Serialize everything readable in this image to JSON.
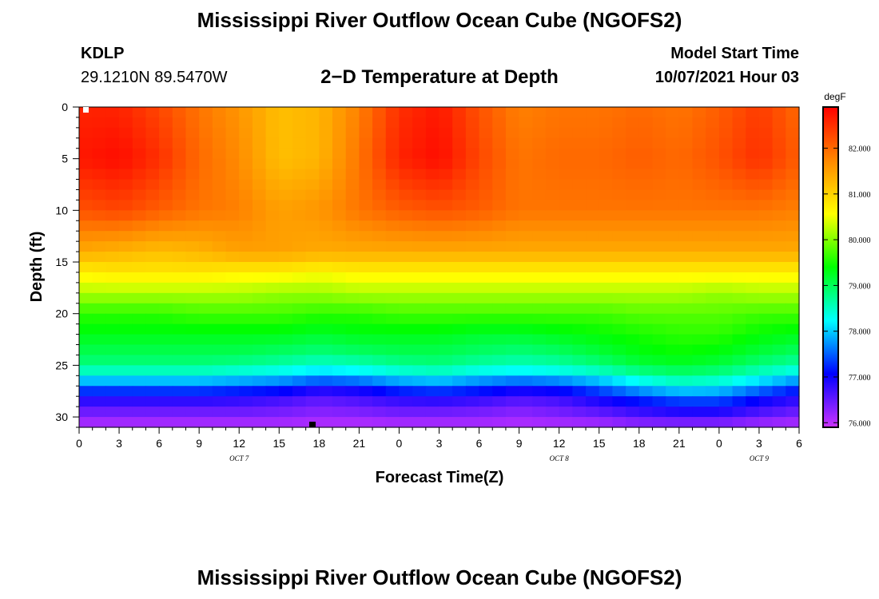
{
  "header": {
    "title": "Mississippi River Outflow Ocean Cube (NGOFS2)",
    "station_id": "KDLP",
    "station_coords": "29.1210N  89.5470W",
    "plot_title": "2−D Temperature at Depth",
    "model_start_label": "Model Start Time",
    "model_start_value": "10/07/2021 Hour 03"
  },
  "footer": {
    "title": "Mississippi River Outflow Ocean Cube (NGOFS2)"
  },
  "chart_data": {
    "type": "heatmap",
    "title": "2−D Temperature at Depth",
    "xlabel": "Forecast Time(Z)",
    "ylabel": "Depth (ft)",
    "x_start_hour": 0,
    "x_end_hour": 54,
    "x_ticks": [
      {
        "hour": 0,
        "label": "0"
      },
      {
        "hour": 3,
        "label": "3"
      },
      {
        "hour": 6,
        "label": "6"
      },
      {
        "hour": 9,
        "label": "9"
      },
      {
        "hour": 12,
        "label": "12"
      },
      {
        "hour": 15,
        "label": "15"
      },
      {
        "hour": 18,
        "label": "18"
      },
      {
        "hour": 21,
        "label": "21"
      },
      {
        "hour": 24,
        "label": "0"
      },
      {
        "hour": 27,
        "label": "3"
      },
      {
        "hour": 30,
        "label": "6"
      },
      {
        "hour": 33,
        "label": "9"
      },
      {
        "hour": 36,
        "label": "12"
      },
      {
        "hour": 39,
        "label": "15"
      },
      {
        "hour": 42,
        "label": "18"
      },
      {
        "hour": 45,
        "label": "21"
      },
      {
        "hour": 48,
        "label": "0"
      },
      {
        "hour": 51,
        "label": "3"
      },
      {
        "hour": 54,
        "label": "6"
      }
    ],
    "date_labels": [
      {
        "hour": 12,
        "label": "OCT 7"
      },
      {
        "hour": 36,
        "label": "OCT 8"
      },
      {
        "hour": 51,
        "label": "OCT 9"
      }
    ],
    "ylim": [
      0,
      31
    ],
    "y_reversed": true,
    "y_ticks": [
      0,
      5,
      10,
      15,
      20,
      25,
      30
    ],
    "colorbar": {
      "unit": "degF",
      "range": [
        75.9,
        82.9
      ],
      "tick_values": [
        76,
        77,
        78,
        79,
        80,
        81,
        82
      ],
      "tick_labels": [
        "76.000",
        "77.000",
        "78.000",
        "79.000",
        "80.000",
        "81.000",
        "82.000"
      ],
      "colormap": [
        "#cc33ff",
        "#0000ff",
        "#00ffff",
        "#00ff00",
        "#ffff00",
        "#ff8800",
        "#ff0000"
      ]
    },
    "depth_levels": [
      0,
      5,
      10,
      14,
      16,
      18,
      20,
      22,
      24,
      25,
      26,
      27,
      28,
      29,
      30,
      31
    ],
    "time_hours": [
      0,
      3,
      6,
      9,
      12,
      15,
      18,
      21,
      24,
      27,
      30,
      33,
      36,
      39,
      42,
      45,
      48,
      51,
      54
    ],
    "temperature_degF": [
      [
        82.6,
        82.6,
        82.3,
        81.9,
        81.6,
        81.2,
        81.3,
        81.8,
        82.5,
        82.7,
        82.2,
        81.8,
        81.9,
        81.9,
        82.0,
        81.9,
        82.1,
        82.4,
        82.0
      ],
      [
        82.7,
        82.8,
        82.5,
        82.0,
        81.7,
        81.2,
        81.3,
        81.9,
        82.6,
        82.8,
        82.3,
        81.9,
        82.0,
        82.0,
        82.1,
        82.0,
        82.2,
        82.5,
        82.1
      ],
      [
        82.2,
        82.3,
        82.1,
        81.9,
        81.8,
        81.5,
        81.6,
        81.9,
        82.1,
        82.2,
        82.1,
        81.9,
        81.9,
        81.9,
        81.9,
        81.9,
        81.9,
        81.9,
        81.8
      ],
      [
        81.4,
        81.3,
        81.2,
        81.3,
        81.5,
        81.5,
        81.4,
        81.4,
        81.4,
        81.4,
        81.4,
        81.4,
        81.4,
        81.4,
        81.4,
        81.4,
        81.4,
        81.4,
        81.4
      ],
      [
        80.7,
        80.8,
        80.8,
        80.8,
        80.7,
        80.7,
        80.6,
        80.7,
        80.7,
        80.7,
        80.7,
        80.7,
        80.7,
        80.7,
        80.7,
        80.7,
        80.7,
        80.7,
        80.7
      ],
      [
        80.2,
        80.2,
        80.2,
        80.2,
        80.2,
        80.1,
        80.1,
        80.2,
        80.2,
        80.2,
        80.2,
        80.2,
        80.2,
        80.2,
        80.2,
        80.2,
        80.1,
        80.2,
        80.2
      ],
      [
        79.6,
        79.6,
        79.6,
        79.7,
        79.7,
        79.7,
        79.6,
        79.6,
        79.7,
        79.7,
        79.7,
        79.7,
        79.7,
        79.7,
        79.8,
        79.8,
        79.8,
        79.7,
        79.7
      ],
      [
        79.3,
        79.3,
        79.3,
        79.3,
        79.3,
        79.3,
        79.2,
        79.3,
        79.3,
        79.3,
        79.2,
        79.2,
        79.3,
        79.4,
        79.5,
        79.6,
        79.6,
        79.4,
        79.3
      ],
      [
        79.0,
        79.0,
        79.0,
        79.0,
        79.0,
        78.9,
        78.8,
        78.9,
        79.0,
        79.0,
        78.9,
        78.8,
        78.9,
        79.1,
        79.3,
        79.4,
        79.3,
        79.1,
        78.9
      ],
      [
        78.8,
        78.8,
        78.8,
        78.8,
        78.7,
        78.6,
        78.4,
        78.5,
        78.7,
        78.8,
        78.6,
        78.5,
        78.6,
        78.8,
        79.1,
        79.2,
        79.1,
        78.8,
        78.6
      ],
      [
        78.3,
        78.3,
        78.3,
        78.3,
        78.2,
        78.1,
        77.9,
        78.0,
        78.2,
        78.3,
        78.1,
        78.0,
        78.1,
        78.3,
        78.6,
        78.8,
        78.7,
        78.4,
        78.1
      ],
      [
        77.6,
        77.6,
        77.6,
        77.6,
        77.5,
        77.4,
        77.1,
        77.2,
        77.5,
        77.6,
        77.4,
        77.2,
        77.3,
        77.6,
        78.0,
        78.3,
        78.2,
        77.8,
        77.4
      ],
      [
        77.0,
        77.0,
        77.0,
        77.0,
        76.9,
        76.8,
        76.6,
        76.7,
        76.9,
        77.0,
        76.9,
        76.7,
        76.8,
        77.1,
        77.4,
        77.6,
        77.6,
        77.2,
        76.9
      ],
      [
        76.6,
        76.6,
        76.6,
        76.6,
        76.6,
        76.5,
        76.4,
        76.5,
        76.6,
        76.6,
        76.5,
        76.4,
        76.5,
        76.7,
        76.9,
        77.1,
        77.1,
        76.8,
        76.6
      ],
      [
        76.3,
        76.3,
        76.3,
        76.3,
        76.3,
        76.3,
        76.2,
        76.2,
        76.3,
        76.3,
        76.3,
        76.2,
        76.3,
        76.4,
        76.6,
        76.7,
        76.7,
        76.5,
        76.3
      ],
      [
        76.0,
        76.0,
        76.0,
        76.0,
        76.0,
        76.0,
        76.0,
        76.0,
        76.0,
        76.0,
        76.0,
        76.0,
        76.0,
        76.0,
        76.1,
        76.1,
        76.1,
        76.0,
        76.0
      ]
    ]
  }
}
